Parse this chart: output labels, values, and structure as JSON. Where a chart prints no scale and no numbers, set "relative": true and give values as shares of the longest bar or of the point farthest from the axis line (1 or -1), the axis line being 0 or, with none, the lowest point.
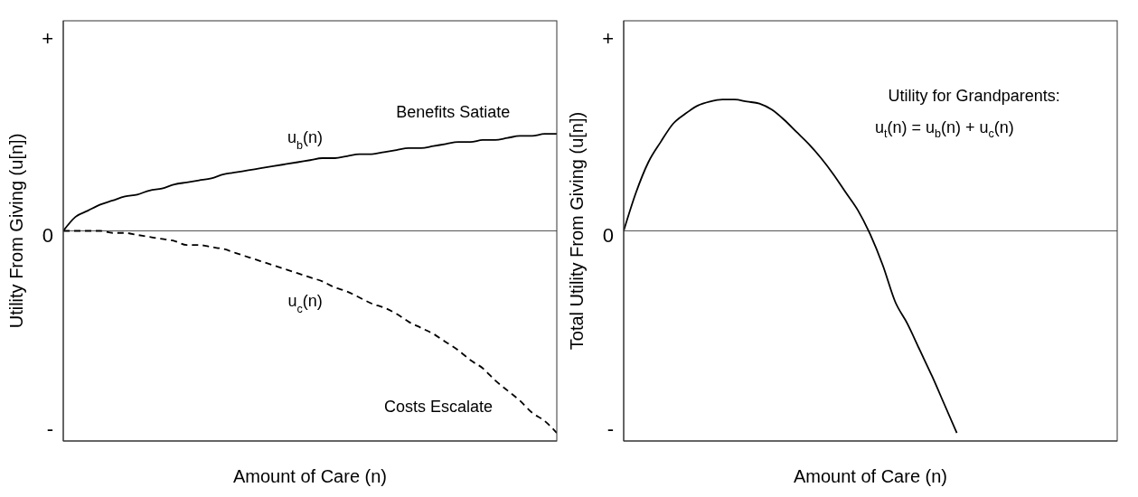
{
  "chart_data": [
    {
      "type": "line",
      "xlabel": "Amount of Care (n)",
      "ylabel": "Utility From Giving (u[n])",
      "categories": [
        null,
        null,
        null,
        null,
        null,
        null,
        null,
        null,
        null,
        null,
        null,
        null,
        null,
        null,
        null,
        null,
        null,
        null,
        null,
        null,
        null,
        null,
        null,
        null,
        null,
        null,
        null,
        null,
        null,
        null,
        null,
        null,
        null,
        null,
        null,
        null,
        null,
        null,
        null,
        null,
        null
      ],
      "series": [
        {
          "name": "u$_{b}$(n)",
          "color": "#000000",
          "line_style": "solid",
          "values": [
            0,
            0.07,
            0.1,
            0.13,
            0.15,
            0.17,
            0.18,
            0.2,
            0.21,
            0.23,
            0.24,
            0.25,
            0.26,
            0.28,
            0.29,
            0.3,
            0.31,
            0.32,
            0.33,
            0.34,
            0.35,
            0.36,
            0.36,
            0.37,
            0.38,
            0.38,
            0.39,
            0.4,
            0.41,
            0.41,
            0.42,
            0.43,
            0.44,
            0.44,
            0.45,
            0.45,
            0.46,
            0.47,
            0.47,
            0.48,
            0.48
          ]
        },
        {
          "name": "u$_{c}$(n)",
          "color": "#000000",
          "line_style": "dashed",
          "values": [
            0,
            0,
            0,
            0,
            -0.01,
            -0.01,
            -0.02,
            -0.03,
            -0.04,
            -0.05,
            -0.07,
            -0.07,
            -0.08,
            -0.09,
            -0.11,
            -0.13,
            -0.15,
            -0.17,
            -0.19,
            -0.21,
            -0.23,
            -0.25,
            -0.28,
            -0.3,
            -0.33,
            -0.36,
            -0.38,
            -0.41,
            -0.45,
            -0.48,
            -0.51,
            -0.55,
            -0.59,
            -0.64,
            -0.68,
            -0.74,
            -0.79,
            -0.84,
            -0.9,
            -0.94,
            -1
          ]
        }
      ],
      "relative": true,
      "ref_lines": [
        {
          "axis": "y",
          "value": 0,
          "color": "#555555"
        }
      ],
      "annotations": [
        "+",
        "0",
        "-",
        "Benefits Satiate",
        "Costs Escalate"
      ]
    },
    {
      "type": "line",
      "xlabel": "Amount of Care (n)",
      "ylabel": "Total Utility From Giving (u[n])",
      "categories": [
        null,
        null,
        null,
        null,
        null,
        null,
        null,
        null,
        null,
        null,
        null,
        null,
        null,
        null,
        null,
        null,
        null,
        null,
        null,
        null,
        null,
        null,
        null,
        null,
        null,
        null,
        null,
        null,
        null,
        null,
        null,
        null,
        null,
        null,
        null,
        null,
        null,
        null,
        null,
        null,
        null
      ],
      "series": [
        {
          "color": "#000000",
          "line_style": "solid",
          "values": [
            0,
            0.19,
            0.34,
            0.44,
            0.53,
            0.58,
            0.62,
            0.64,
            0.65,
            0.65,
            0.64,
            0.63,
            0.6,
            0.55,
            0.49,
            0.43,
            0.36,
            0.28,
            0.19,
            0.1,
            -0.02,
            -0.17,
            -0.35,
            -0.46,
            -0.59,
            -0.72,
            -0.86,
            -1,
            null,
            null,
            null,
            null,
            null,
            null,
            null,
            null,
            null,
            null,
            null,
            null,
            null
          ]
        }
      ],
      "relative": true,
      "ref_lines": [
        {
          "axis": "y",
          "value": 0,
          "color": "#555555"
        }
      ],
      "annotations": [
        "+",
        "0",
        "-",
        "Utility for Grandparents:",
        "u$_{t}$(n) = u$_{b}$(n) + u$_{c}$(n)"
      ]
    }
  ]
}
